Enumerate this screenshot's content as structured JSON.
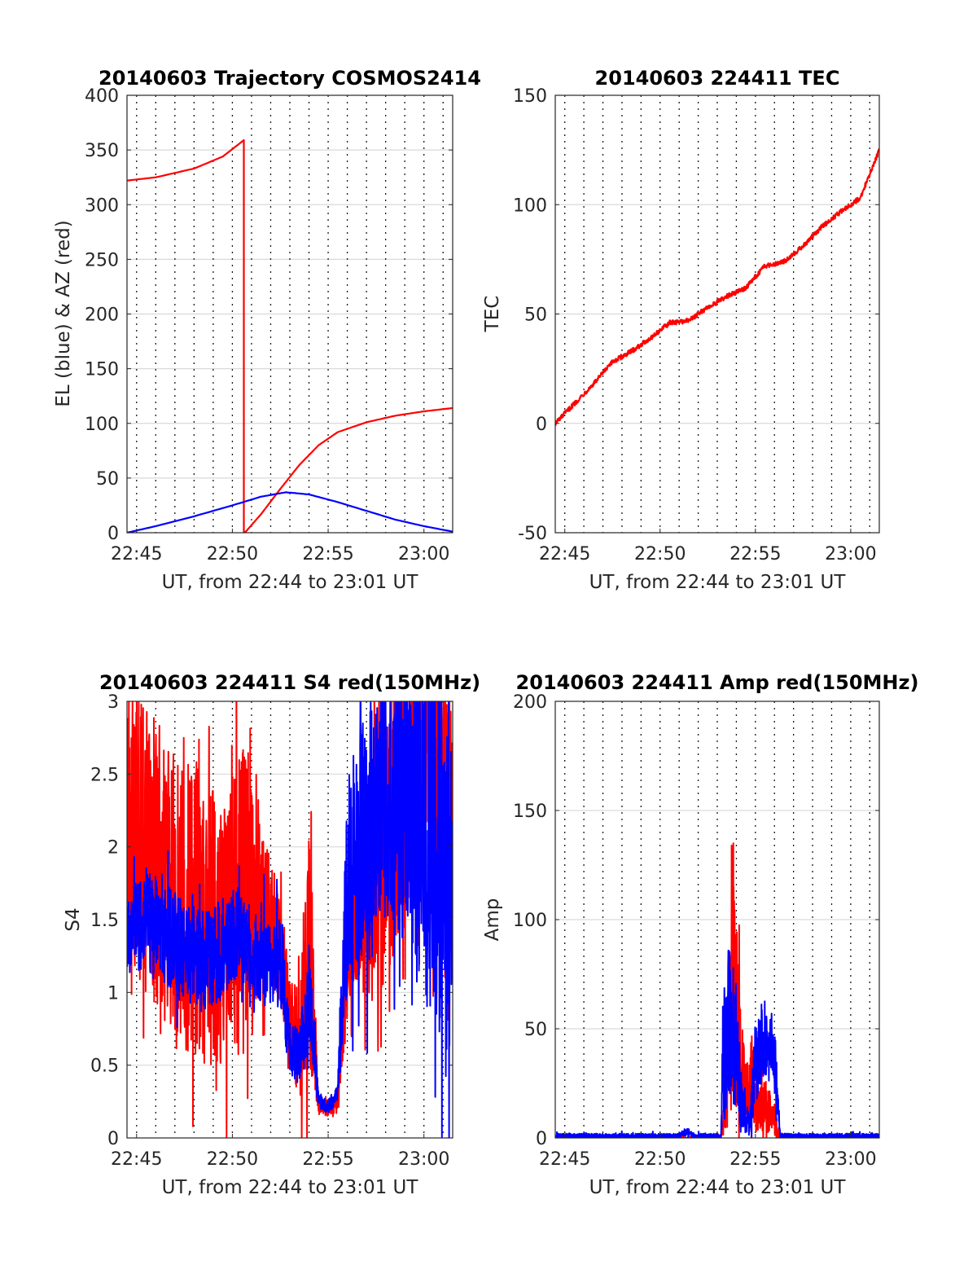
{
  "chart_data": [
    {
      "type": "line",
      "title": "20140603 Trajectory COSMOS2414",
      "xlabel": "UT, from 22:44 to 23:01 UT",
      "ylabel": "EL (blue) & AZ (red)",
      "x_unit": "minutes after 22:44 UT",
      "xlim": [
        0.5,
        17.5
      ],
      "ylim": [
        0,
        400
      ],
      "xticks": [
        1,
        6,
        11,
        16
      ],
      "xticklabels": [
        "22:45",
        "22:50",
        "22:55",
        "23:00"
      ],
      "yticks": [
        0,
        50,
        100,
        150,
        200,
        250,
        300,
        350,
        400
      ],
      "grid": "x dotted every 1 min, y light solid",
      "series": [
        {
          "color": "#ff0000",
          "x": [
            0.5,
            2,
            4,
            5.5,
            6.6,
            6.6,
            6.7,
            7.5,
            8.5,
            9.5,
            10.5,
            11.5,
            13,
            14.5,
            16,
            17.5
          ],
          "values": [
            322,
            325,
            333,
            344,
            359,
            0,
            1,
            17,
            40,
            62,
            80,
            92,
            101,
            107,
            111,
            114
          ]
        },
        {
          "color": "#0000ff",
          "x": [
            0.5,
            2,
            4,
            6,
            7.5,
            8.8,
            10,
            11.5,
            13,
            14.5,
            16,
            17.5
          ],
          "values": [
            0,
            6,
            15,
            25,
            33,
            37,
            35,
            28,
            20,
            12,
            6,
            1
          ]
        }
      ]
    },
    {
      "type": "line",
      "title": "20140603 224411 TEC",
      "xlabel": "UT, from 22:44 to 23:01 UT",
      "ylabel": "TEC",
      "xlim": [
        0.5,
        17.5
      ],
      "ylim": [
        -50,
        150
      ],
      "xticks": [
        1,
        6,
        11,
        16
      ],
      "xticklabels": [
        "22:45",
        "22:50",
        "22:55",
        "23:00"
      ],
      "yticks": [
        -50,
        0,
        50,
        100,
        150
      ],
      "series": [
        {
          "color": "#ff0000",
          "x": [
            0.5,
            1.5,
            2.5,
            3.5,
            4.5,
            5.5,
            6.5,
            7.5,
            8.5,
            9.5,
            10.5,
            11.5,
            12.5,
            13.5,
            14.5,
            15.5,
            16.5,
            17.5
          ],
          "values": [
            0,
            9,
            18,
            28,
            33,
            39,
            46,
            47,
            53,
            58,
            62,
            72,
            74,
            81,
            90,
            97,
            103,
            125
          ]
        }
      ]
    },
    {
      "type": "line",
      "title": "20140603 224411 S4 red(150MHz)",
      "xlabel": "UT, from 22:44 to 23:01 UT",
      "ylabel": "S4",
      "xlim": [
        0.5,
        17.5
      ],
      "ylim": [
        0,
        3
      ],
      "xticks": [
        1,
        6,
        11,
        16
      ],
      "xticklabels": [
        "22:45",
        "22:50",
        "22:55",
        "23:00"
      ],
      "yticks": [
        0,
        0.5,
        1,
        1.5,
        2,
        2.5,
        3
      ],
      "series": [
        {
          "color": "#ff0000",
          "x": [
            0.5,
            1.5,
            2.5,
            3.5,
            4.5,
            5.5,
            6.5,
            7.5,
            8.5,
            9.0,
            9.5,
            10.0,
            10.5,
            11.0,
            11.5,
            12.0,
            12.5,
            13.5,
            14.5,
            15.5,
            16.5,
            17.5
          ],
          "values": [
            2.2,
            2.0,
            1.8,
            1.6,
            1.5,
            1.4,
            1.7,
            1.6,
            1.3,
            0.8,
            0.65,
            1.3,
            0.22,
            0.2,
            0.25,
            1.1,
            1.5,
            1.8,
            2.3,
            2.6,
            2.6,
            2.0
          ],
          "amp": [
            1.0,
            1.0,
            1.0,
            1.0,
            1.0,
            0.9,
            1.0,
            0.55,
            0.4,
            0.3,
            0.4,
            0.8,
            0.06,
            0.06,
            0.06,
            0.3,
            0.45,
            0.9,
            1.0,
            1.0,
            1.0,
            1.0
          ]
        },
        {
          "color": "#0000ff",
          "x": [
            0.5,
            1.5,
            2.5,
            3.5,
            4.5,
            5.5,
            6.5,
            7.5,
            8.5,
            9.0,
            9.5,
            10.0,
            10.5,
            11.0,
            11.5,
            12.0,
            12.5,
            13.5,
            14.5,
            15.5,
            16.5,
            17.5
          ],
          "values": [
            1.4,
            1.5,
            1.4,
            1.3,
            1.2,
            1.3,
            1.4,
            1.2,
            1.2,
            0.6,
            0.55,
            1.0,
            0.25,
            0.22,
            0.3,
            1.7,
            2.0,
            2.3,
            2.4,
            2.2,
            2.0,
            1.8
          ],
          "amp": [
            0.3,
            0.35,
            0.35,
            0.35,
            0.35,
            0.35,
            0.3,
            0.3,
            0.3,
            0.2,
            0.2,
            0.35,
            0.05,
            0.05,
            0.06,
            0.7,
            0.9,
            0.8,
            0.9,
            1.1,
            1.2,
            1.3
          ]
        }
      ]
    },
    {
      "type": "line",
      "title": "20140603 224411 Amp red(150MHz)",
      "xlabel": "UT, from 22:44 to 23:01 UT",
      "ylabel": "Amp",
      "xlim": [
        0.5,
        17.5
      ],
      "ylim": [
        0,
        200
      ],
      "xticks": [
        1,
        6,
        11,
        16
      ],
      "xticklabels": [
        "22:45",
        "22:50",
        "22:55",
        "23:00"
      ],
      "yticks": [
        0,
        50,
        100,
        150,
        200
      ],
      "series": [
        {
          "color": "#ff0000",
          "x": [
            0.5,
            9.2,
            9.3,
            9.6,
            9.8,
            10.0,
            10.2,
            10.5,
            10.8,
            11.0,
            11.5,
            12.0,
            12.3,
            17.5
          ],
          "values": [
            0,
            0,
            5,
            45,
            70,
            60,
            35,
            25,
            25,
            12,
            15,
            8,
            0,
            0
          ],
          "amp": [
            1,
            1,
            5,
            35,
            60,
            40,
            25,
            15,
            25,
            10,
            12,
            8,
            1,
            1
          ]
        },
        {
          "color": "#0000ff",
          "x": [
            0.5,
            7.0,
            7.4,
            7.8,
            9.2,
            9.3,
            9.6,
            9.9,
            10.3,
            10.7,
            11.0,
            11.5,
            12.0,
            12.3,
            17.5
          ],
          "values": [
            1,
            1,
            3,
            1,
            1,
            40,
            55,
            45,
            15,
            5,
            35,
            45,
            40,
            1,
            1
          ],
          "amp": [
            1,
            1,
            2,
            1,
            1,
            30,
            35,
            30,
            12,
            4,
            20,
            18,
            15,
            1,
            1
          ]
        }
      ]
    }
  ]
}
